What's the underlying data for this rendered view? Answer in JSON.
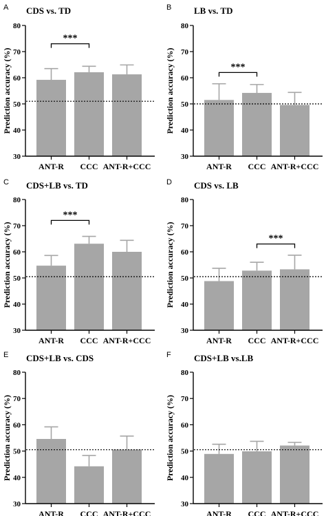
{
  "colors": {
    "bar": "#a6a6a6",
    "axis": "#000000",
    "errorbar": "#a6a6a6",
    "chance_line": "#000000"
  },
  "chart_data": [
    {
      "panel": "A",
      "type": "bar",
      "title": "CDS vs. TD",
      "categories": [
        "ANT-R",
        "CCC",
        "ANT-R+CCC"
      ],
      "values": [
        59.2,
        62.1,
        61.3
      ],
      "errors": [
        4.3,
        2.3,
        3.6
      ],
      "ylabel": "Prediction accuracy (%)",
      "ylim": [
        30,
        80
      ],
      "yticks": [
        30,
        40,
        50,
        60,
        70,
        80
      ],
      "chance_level": 51,
      "significance": [
        {
          "from": 0,
          "to": 1,
          "label": "***",
          "y": 73
        }
      ]
    },
    {
      "panel": "B",
      "type": "bar",
      "title": "LB vs. TD",
      "categories": [
        "ANT-R",
        "CCC",
        "ANT-R+CCC"
      ],
      "values": [
        51.5,
        54.2,
        49.6
      ],
      "errors": [
        6.2,
        3.2,
        4.8
      ],
      "ylabel": "Prediction accuracy (%)",
      "ylim": [
        30,
        80
      ],
      "yticks": [
        30,
        40,
        50,
        60,
        70,
        80
      ],
      "chance_level": 50,
      "significance": [
        {
          "from": 0,
          "to": 1,
          "label": "***",
          "y": 62
        }
      ]
    },
    {
      "panel": "C",
      "type": "bar",
      "title": "CDS+LB vs. TD",
      "categories": [
        "ANT-R",
        "CCC",
        "ANT-R+CCC"
      ],
      "values": [
        54.7,
        63.1,
        60.0
      ],
      "errors": [
        3.9,
        2.8,
        4.4
      ],
      "ylabel": "Prediction accuracy (%)",
      "ylim": [
        30,
        80
      ],
      "yticks": [
        30,
        40,
        50,
        60,
        70,
        80
      ],
      "chance_level": 50.5,
      "significance": [
        {
          "from": 0,
          "to": 1,
          "label": "***",
          "y": 72
        }
      ]
    },
    {
      "panel": "D",
      "type": "bar",
      "title": "CDS vs. LB",
      "categories": [
        "ANT-R",
        "CCC",
        "ANT-R+CCC"
      ],
      "values": [
        48.8,
        52.8,
        53.3
      ],
      "errors": [
        4.9,
        3.2,
        5.4
      ],
      "ylabel": "Prediction accuracy (%)",
      "ylim": [
        30,
        80
      ],
      "yticks": [
        30,
        40,
        50,
        60,
        70,
        80
      ],
      "chance_level": 50.5,
      "significance": [
        {
          "from": 1,
          "to": 2,
          "label": "***",
          "y": 63
        }
      ]
    },
    {
      "panel": "E",
      "type": "bar",
      "title": "CDS+LB vs. CDS",
      "categories": [
        "ANT-R",
        "CCC",
        "ANT-R+CCC"
      ],
      "values": [
        54.6,
        44.2,
        50.6
      ],
      "errors": [
        4.6,
        4.1,
        5.1
      ],
      "ylabel": "Prediction accuracy (%)",
      "ylim": [
        30,
        80
      ],
      "yticks": [
        30,
        40,
        50,
        60,
        70,
        80
      ],
      "chance_level": 50.5,
      "significance": []
    },
    {
      "panel": "F",
      "type": "bar",
      "title": "CDS+LB vs.LB",
      "categories": [
        "ANT-R",
        "CCC",
        "ANT-R+CCC"
      ],
      "values": [
        48.9,
        49.9,
        52.1
      ],
      "errors": [
        3.7,
        3.8,
        1.2
      ],
      "ylabel": "Prediction accuracy (%)",
      "ylim": [
        30,
        80
      ],
      "yticks": [
        30,
        40,
        50,
        60,
        70,
        80
      ],
      "chance_level": 50.5,
      "significance": []
    }
  ]
}
